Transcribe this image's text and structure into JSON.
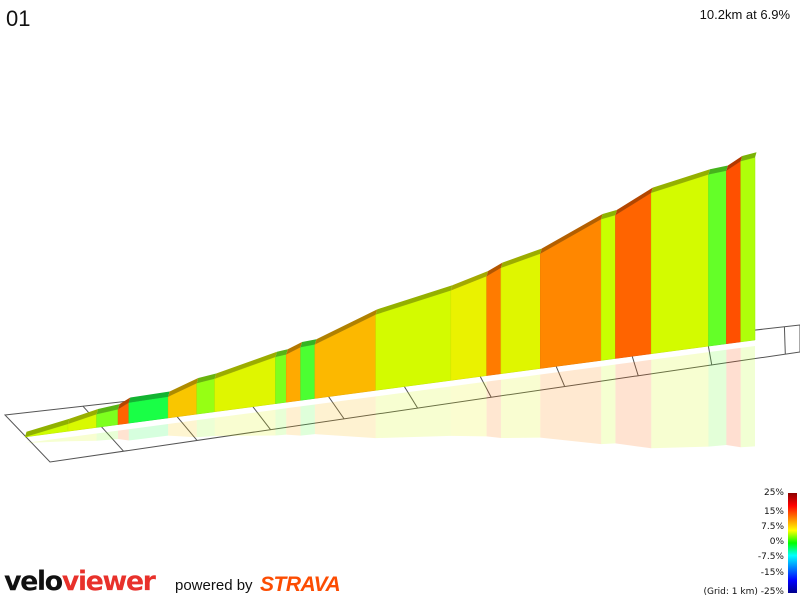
{
  "header": {
    "segment_title": "01",
    "summary": "10.2km at 6.9%"
  },
  "legend": {
    "gradient_labels": [
      "25%",
      "15%",
      "7.5%",
      "0%",
      "-7.5%",
      "-15%",
      "-25%"
    ],
    "gradient_values": [
      25,
      15,
      7.5,
      0,
      -7.5,
      -15,
      -25
    ],
    "grid_note": "(Grid: 1 km)",
    "colors": [
      "#8b0000",
      "#ff0000",
      "#ff8000",
      "#ffff00",
      "#00ff00",
      "#00ffff",
      "#0080ff",
      "#0000ff",
      "#00008b"
    ]
  },
  "branding": {
    "logo_part1": "velo",
    "logo_part2": "viewer",
    "powered_by": "powered by",
    "strava": "STRAVA"
  },
  "chart_data": {
    "type": "area",
    "title": "01",
    "subtitle": "10.2km at 6.9%",
    "x_unit": "km",
    "xlim": [
      0,
      10.2
    ],
    "grid_spacing_km": 1,
    "segments": [
      {
        "km_start": 0.0,
        "km_end": 0.6,
        "gradient": 4.5
      },
      {
        "km_start": 0.6,
        "km_end": 1.0,
        "gradient": 5.5
      },
      {
        "km_start": 1.0,
        "km_end": 1.3,
        "gradient": 2.5
      },
      {
        "km_start": 1.3,
        "km_end": 1.45,
        "gradient": 13.0
      },
      {
        "km_start": 1.45,
        "km_end": 2.0,
        "gradient": 0.5
      },
      {
        "km_start": 2.0,
        "km_end": 2.4,
        "gradient": 9.0
      },
      {
        "km_start": 2.4,
        "km_end": 2.65,
        "gradient": 3.0
      },
      {
        "km_start": 2.65,
        "km_end": 3.5,
        "gradient": 6.0
      },
      {
        "km_start": 3.5,
        "km_end": 3.65,
        "gradient": 2.5
      },
      {
        "km_start": 3.65,
        "km_end": 3.85,
        "gradient": 10.0
      },
      {
        "km_start": 3.85,
        "km_end": 4.05,
        "gradient": 1.5
      },
      {
        "km_start": 4.05,
        "km_end": 4.9,
        "gradient": 9.5
      },
      {
        "km_start": 4.9,
        "km_end": 5.95,
        "gradient": 5.0
      },
      {
        "km_start": 5.95,
        "km_end": 6.45,
        "gradient": 7.0
      },
      {
        "km_start": 6.45,
        "km_end": 6.65,
        "gradient": 12.0
      },
      {
        "km_start": 6.65,
        "km_end": 7.2,
        "gradient": 6.0
      },
      {
        "km_start": 7.2,
        "km_end": 8.05,
        "gradient": 11.5
      },
      {
        "km_start": 8.05,
        "km_end": 8.25,
        "gradient": 4.0
      },
      {
        "km_start": 8.25,
        "km_end": 8.75,
        "gradient": 13.0
      },
      {
        "km_start": 8.75,
        "km_end": 9.55,
        "gradient": 5.0
      },
      {
        "km_start": 9.55,
        "km_end": 9.8,
        "gradient": 2.0
      },
      {
        "km_start": 9.8,
        "km_end": 10.0,
        "gradient": 14.0
      },
      {
        "km_start": 10.0,
        "km_end": 10.2,
        "gradient": 3.5
      }
    ]
  }
}
